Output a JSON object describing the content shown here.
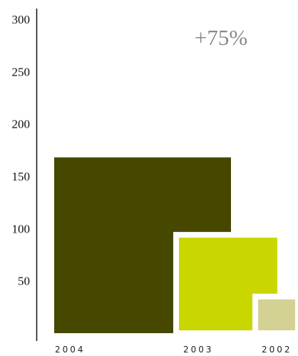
{
  "chart_data": {
    "type": "bar",
    "title": "",
    "xlabel": "",
    "ylabel": "",
    "ylim": [
      0,
      300
    ],
    "yticks": [
      "300",
      "250",
      "200",
      "150",
      "100",
      "50"
    ],
    "grid": false,
    "categories": [
      "2004",
      "2003",
      "2002"
    ],
    "values": [
      168,
      94,
      35
    ],
    "colors": [
      "#464800",
      "#c9d600",
      "#d4d195"
    ],
    "annotation": "+75%"
  }
}
